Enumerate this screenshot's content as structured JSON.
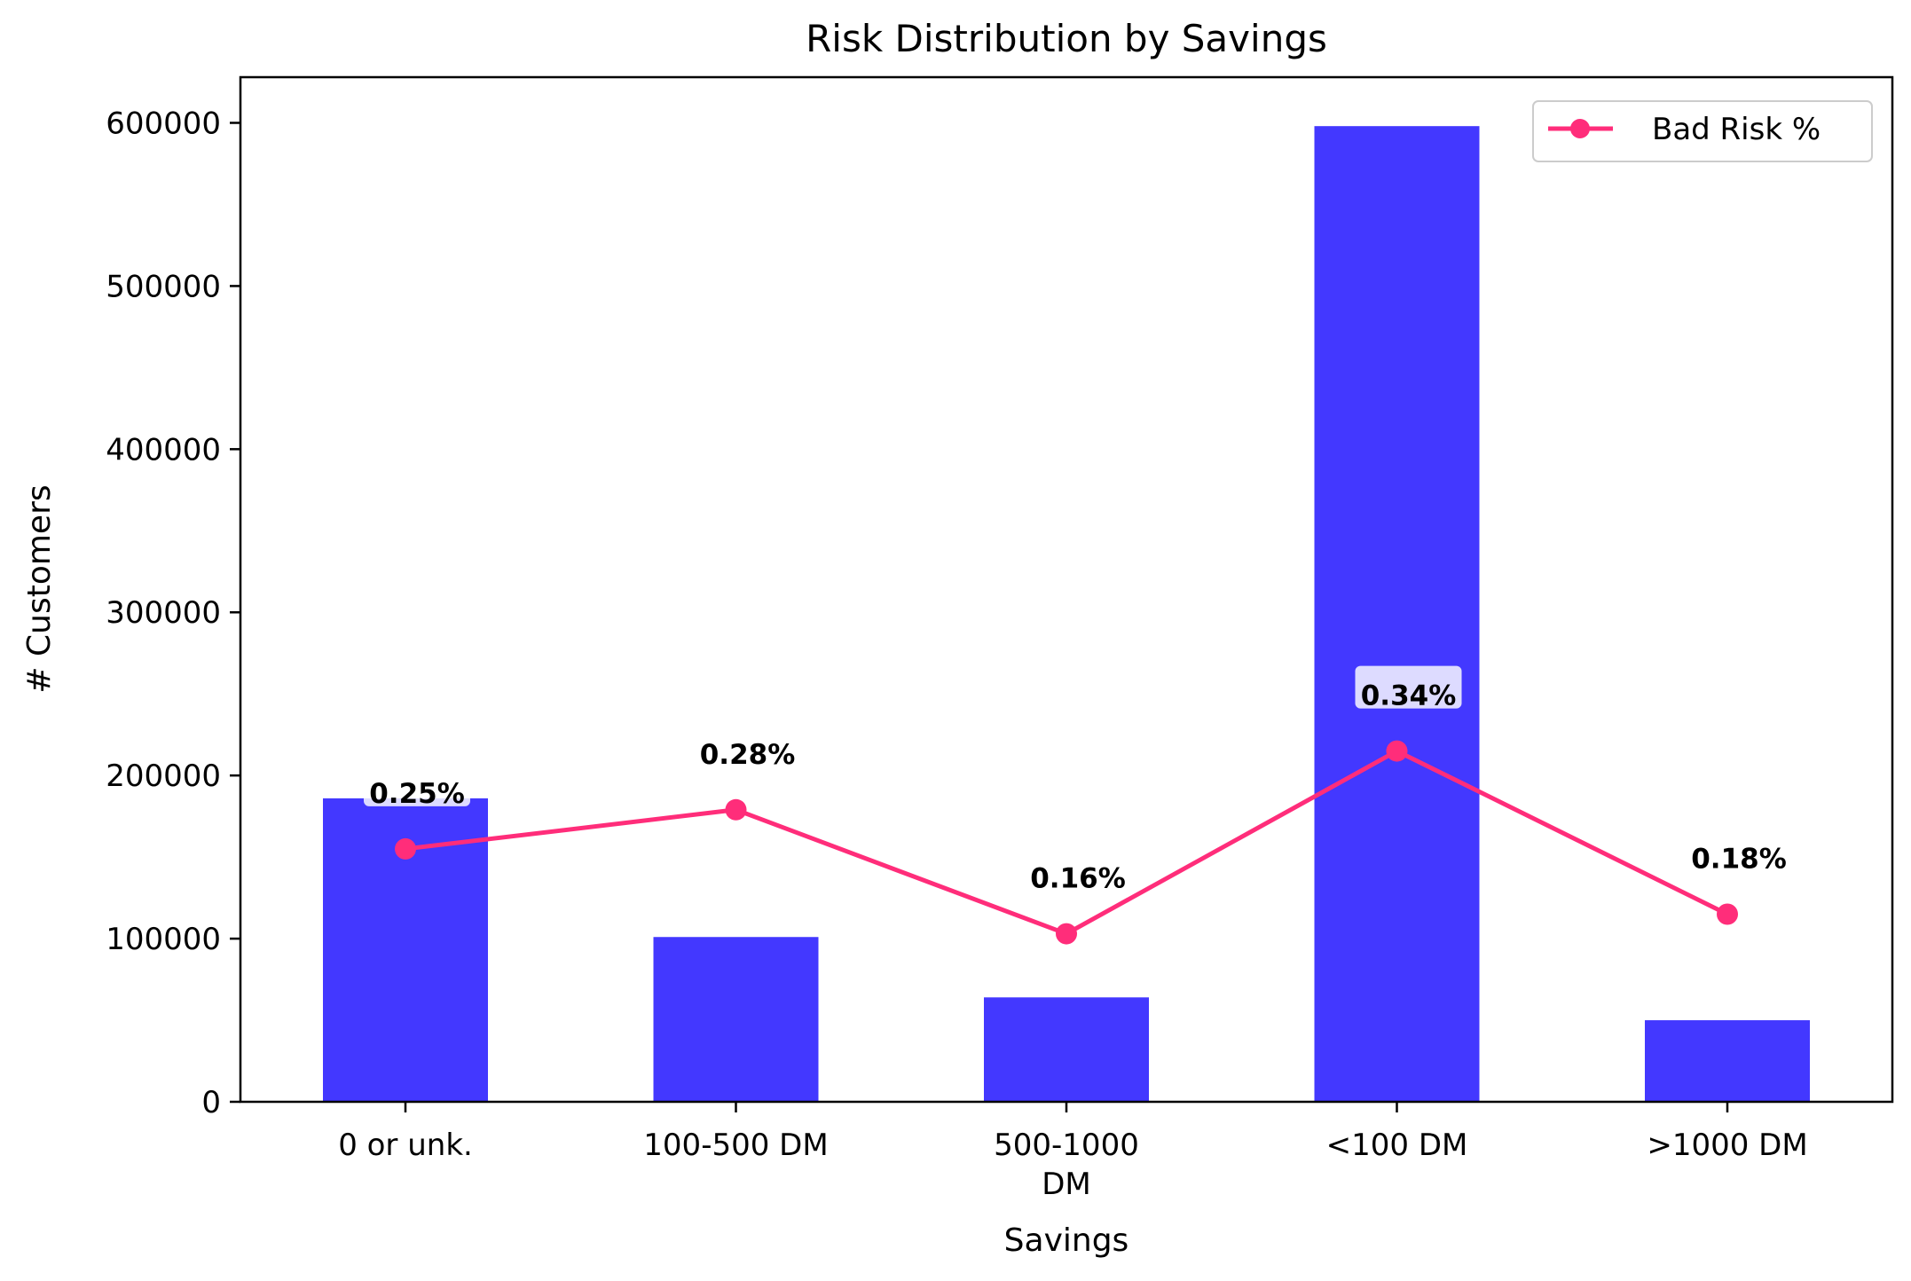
{
  "chart_data": {
    "type": "bar",
    "title": "Risk Distribution by Savings",
    "xlabel": "Savings",
    "ylabel": "# Customers",
    "categories": [
      [
        "0 or unk."
      ],
      [
        "100-500 DM"
      ],
      [
        "500-1000",
        "DM"
      ],
      [
        "<100 DM"
      ],
      [
        ">1000 DM"
      ]
    ],
    "series": [
      {
        "type": "bar",
        "values": [
          186000,
          101000,
          64000,
          598000,
          50000
        ]
      },
      {
        "type": "line",
        "name": "Bad Risk %",
        "values": [
          155000,
          179000,
          103000,
          215000,
          115000
        ],
        "labels": [
          "0.25%",
          "0.28%",
          "0.16%",
          "0.34%",
          "0.18%"
        ]
      }
    ],
    "ylim": [
      0,
      628000
    ],
    "yticks": [
      0,
      100000,
      200000,
      300000,
      400000,
      500000,
      600000
    ],
    "legend": "top-right",
    "grid": false,
    "colors": {
      "bar": "#4338ff",
      "line": "#ff2d7a"
    }
  }
}
